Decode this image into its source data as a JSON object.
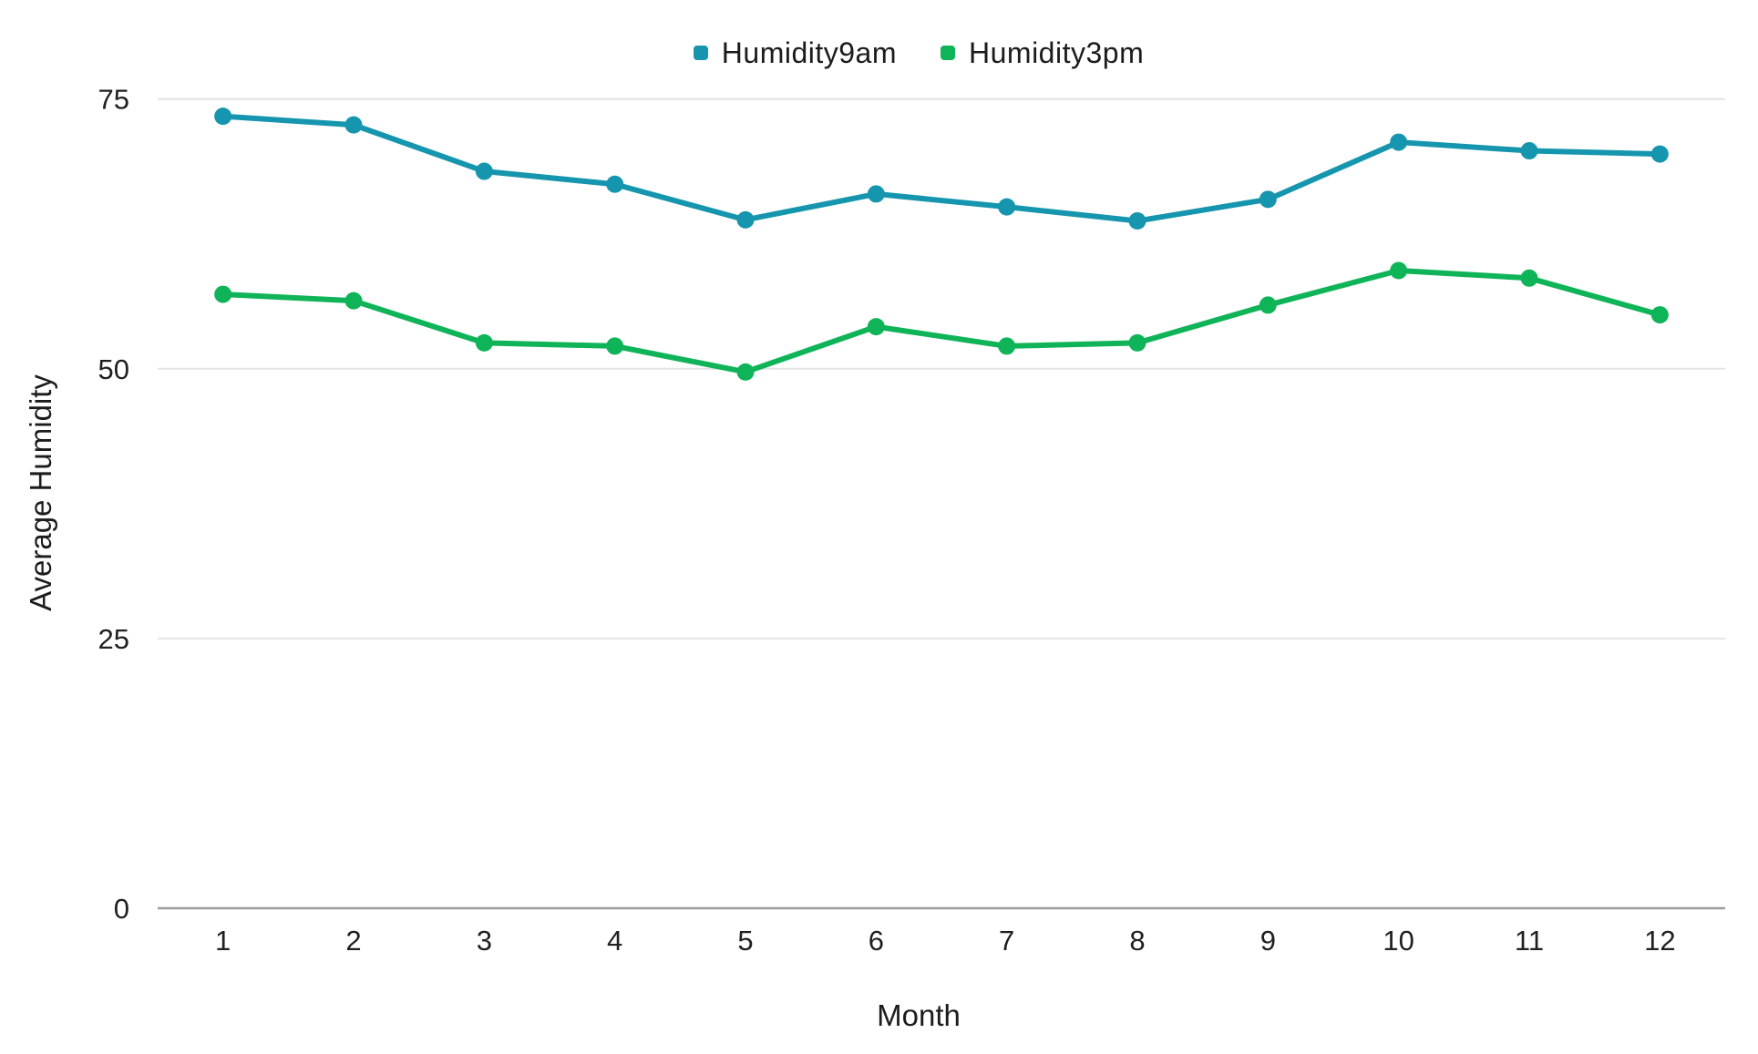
{
  "chart_data": {
    "type": "line",
    "title": "",
    "xlabel": "Month",
    "ylabel": "Average Humidity",
    "categories": [
      "1",
      "2",
      "3",
      "4",
      "5",
      "6",
      "7",
      "8",
      "9",
      "10",
      "11",
      "12"
    ],
    "series": [
      {
        "name": "Humidity9am",
        "color": "#1696ae",
        "marker": "circle",
        "values": [
          73.4,
          72.6,
          68.3,
          67.1,
          63.8,
          66.2,
          65.0,
          63.7,
          65.7,
          71.0,
          70.2,
          69.9
        ]
      },
      {
        "name": "Humidity3pm",
        "color": "#10b458",
        "marker": "circle",
        "values": [
          56.9,
          56.3,
          52.4,
          52.1,
          49.7,
          53.9,
          52.1,
          52.4,
          55.9,
          59.1,
          58.4,
          55.0
        ]
      }
    ],
    "ylim": [
      0,
      77
    ],
    "yticks": [
      0,
      25,
      50,
      75
    ],
    "grid": "horizontal-only",
    "legend_position": "top-center"
  },
  "colors": {
    "background": "#ffffff",
    "grid": "#e4e4e4",
    "axis": "#9b9b9b",
    "text": "#202020"
  }
}
